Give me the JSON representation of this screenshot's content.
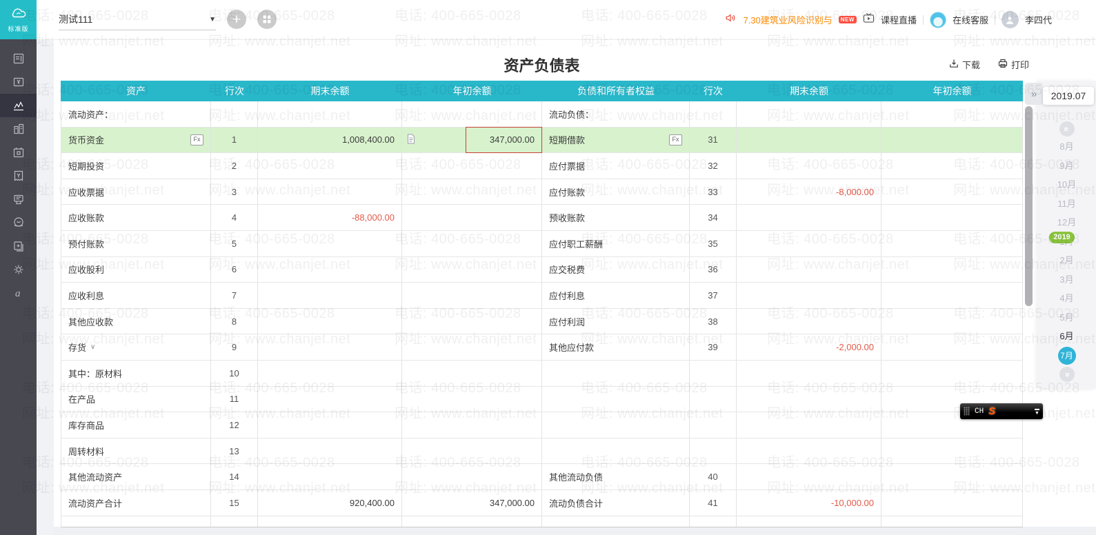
{
  "app": {
    "edition_label": "标准版",
    "account_set": "测试111"
  },
  "topbar": {
    "announcement": "7.30建筑业风险识别与",
    "new_badge": "NEW",
    "live_label": "课程直播",
    "support_label": "在线客服",
    "username": "李四代"
  },
  "sidebar": {
    "items": [
      "journal-icon",
      "voucher-icon",
      "report-chart-icon",
      "buildings-icon",
      "calendar-icon",
      "invoice-icon",
      "receipt-icon",
      "coin-icon",
      "copy-docs-icon",
      "gear-icon",
      "brand-a-icon"
    ],
    "active_index": 2
  },
  "report": {
    "title": "资产负债表",
    "download_label": "下载",
    "print_label": "打印"
  },
  "table": {
    "headers": [
      "资产",
      "行次",
      "期末余额",
      "年初余额",
      "负债和所有者权益",
      "行次",
      "期末余额",
      "年初余额"
    ],
    "rows": [
      {
        "type": "section",
        "asset_name": "流动资产：",
        "liab_name": "流动负债："
      },
      {
        "type": "data",
        "highlight": true,
        "asset_name": "货币资金",
        "asset_fx": true,
        "asset_line": "1",
        "asset_end": "1,008,400.00",
        "asset_doc": true,
        "asset_begin": "347,000.00",
        "asset_begin_boxed": true,
        "liab_name": "短期借款",
        "liab_fx": true,
        "liab_line": "31",
        "liab_end": "",
        "liab_begin": ""
      },
      {
        "type": "data",
        "asset_name": "短期投资",
        "asset_line": "2",
        "liab_name": "应付票据",
        "liab_line": "32"
      },
      {
        "type": "data",
        "asset_name": "应收票据",
        "asset_line": "3",
        "liab_name": "应付账款",
        "liab_line": "33",
        "liab_end": "-8,000.00"
      },
      {
        "type": "data",
        "asset_name": "应收账款",
        "asset_line": "4",
        "asset_end": "-88,000.00",
        "liab_name": "预收账款",
        "liab_line": "34"
      },
      {
        "type": "data",
        "asset_name": "预付账款",
        "asset_line": "5",
        "liab_name": "应付职工薪酬",
        "liab_line": "35"
      },
      {
        "type": "data",
        "asset_name": "应收股利",
        "asset_line": "6",
        "liab_name": "应交税费",
        "liab_line": "36"
      },
      {
        "type": "data",
        "asset_name": "应收利息",
        "asset_line": "7",
        "liab_name": "应付利息",
        "liab_line": "37"
      },
      {
        "type": "data",
        "asset_name": "其他应收款",
        "asset_line": "8",
        "liab_name": "应付利润",
        "liab_line": "38"
      },
      {
        "type": "data",
        "asset_name": "存货",
        "asset_expand": true,
        "asset_line": "9",
        "liab_name": "其他应付款",
        "liab_line": "39",
        "liab_end": "-2,000.00"
      },
      {
        "type": "data",
        "asset_name": "其中：原材料",
        "asset_line": "10"
      },
      {
        "type": "data",
        "asset_name": "在产品",
        "asset_line": "11"
      },
      {
        "type": "data",
        "asset_name": "库存商品",
        "asset_line": "12"
      },
      {
        "type": "data",
        "asset_name": "周转材料",
        "asset_line": "13"
      },
      {
        "type": "data",
        "asset_name": "其他流动资产",
        "asset_line": "14",
        "liab_name": "其他流动负债",
        "liab_line": "40"
      },
      {
        "type": "data",
        "asset_name": "流动资产合计",
        "asset_line": "15",
        "asset_end": "920,400.00",
        "asset_begin": "347,000.00",
        "liab_name": "流动负债合计",
        "liab_line": "41",
        "liab_end": "-10,000.00"
      }
    ]
  },
  "period_panel": {
    "current": "2019.07",
    "year_badge": "2019",
    "collapse_glyph": "»",
    "months": [
      {
        "label": "8月",
        "state": "normal"
      },
      {
        "label": "9月",
        "state": "normal"
      },
      {
        "label": "10月",
        "state": "normal"
      },
      {
        "label": "11月",
        "state": "normal"
      },
      {
        "label": "12月",
        "state": "normal"
      },
      {
        "label": "1月",
        "state": "normal"
      },
      {
        "label": "2月",
        "state": "normal"
      },
      {
        "label": "3月",
        "state": "normal"
      },
      {
        "label": "4月",
        "state": "normal"
      },
      {
        "label": "5月",
        "state": "normal"
      },
      {
        "label": "6月",
        "state": "emphasis"
      },
      {
        "label": "7月",
        "state": "selected"
      }
    ]
  },
  "ime": {
    "lang": "CH",
    "logo": "S"
  },
  "watermark": {
    "line1": "电话: 400-665-0028",
    "line2": "网址: www.chanjet.net"
  },
  "colors": {
    "accent_teal": "#29b7ca",
    "logo_teal": "#25bec8",
    "highlight_green": "#d8f2cd",
    "negative_red": "#e25a4a",
    "annotation_red_box": "#c4403a",
    "year_badge_green": "#8ac43e",
    "announce_orange": "#ff8a00",
    "sidebar_dark": "#474850",
    "selected_month_teal": "#2fb4d8"
  }
}
